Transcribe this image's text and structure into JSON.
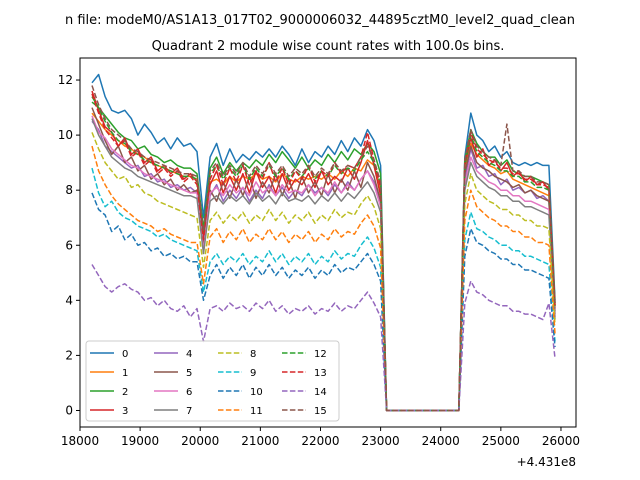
{
  "suptitle": "n file: modeM0/AS1A13_017T02_9000006032_44895cztM0_level2_quad_clean",
  "chart_data": {
    "type": "line",
    "title": "Quadrant 2 module wise count rates with 100.0s bins.",
    "xlabel": "",
    "ylabel": "",
    "x_offset_label": "+4.431e8",
    "xlim": [
      18000,
      26250
    ],
    "ylim": [
      -0.6,
      12.8
    ],
    "x_ticks": [
      18000,
      19000,
      20000,
      21000,
      22000,
      23000,
      24000,
      25000,
      26000
    ],
    "x_tick_labels": [
      "18000",
      "19000",
      "20000",
      "21000",
      "22000",
      "23000",
      "24000",
      "25000",
      "26000"
    ],
    "y_ticks": [
      0,
      2,
      4,
      6,
      8,
      10,
      12
    ],
    "y_tick_labels": [
      "0",
      "2",
      "4",
      "6",
      "8",
      "10",
      "12"
    ],
    "grid": false,
    "legend": {
      "placement": "lower-left",
      "columns": 4
    },
    "segments": [
      {
        "x_start": 18200,
        "x_end": 23000
      },
      {
        "x_start": 24400,
        "x_end": 25900
      }
    ],
    "gap": {
      "x": [
        23100,
        23200,
        23300,
        23400,
        23500,
        23600,
        23700,
        23800,
        23900,
        24000,
        24100,
        24200,
        24300
      ],
      "value": 0
    },
    "series": [
      {
        "name": "0",
        "color": "#1f77b4",
        "dash": "solid",
        "seg1": [
          11.9,
          12.2,
          11.4,
          10.9,
          10.8,
          10.9,
          10.6,
          10.0,
          10.4,
          10.1,
          9.7,
          9.9,
          9.5,
          9.9,
          9.6,
          9.7,
          9.4,
          7.0,
          9.2,
          9.7,
          8.9,
          9.5,
          9.0,
          9.3,
          9.1,
          9.4,
          9.2,
          9.5,
          9.2,
          9.6,
          9.3,
          8.9,
          9.5,
          9.0,
          9.4,
          9.2,
          9.6,
          9.3,
          9.8,
          9.4,
          9.9,
          9.6,
          10.2,
          9.8,
          8.9
        ],
        "seg2": [
          9.2,
          10.8,
          10.0,
          9.8,
          9.4,
          9.6,
          9.2,
          9.4,
          9.0,
          8.9,
          9.0,
          8.9,
          9.0,
          8.9,
          8.9,
          4.0
        ]
      },
      {
        "name": "1",
        "color": "#ff7f0e",
        "dash": "solid",
        "seg1": [
          10.8,
          10.5,
          10.2,
          10.0,
          9.8,
          9.6,
          9.5,
          9.3,
          9.2,
          9.0,
          8.9,
          8.8,
          8.7,
          8.6,
          8.5,
          8.5,
          8.4,
          6.4,
          8.3,
          8.4,
          8.2,
          8.5,
          8.3,
          8.5,
          8.4,
          8.6,
          8.4,
          8.5,
          8.3,
          8.6,
          8.4,
          8.3,
          8.5,
          8.4,
          8.5,
          8.4,
          8.6,
          8.4,
          8.7,
          8.5,
          8.8,
          8.7,
          9.1,
          8.9,
          8.0
        ],
        "seg2": [
          8.8,
          9.7,
          9.3,
          9.1,
          8.9,
          8.8,
          8.6,
          8.7,
          8.4,
          8.3,
          8.2,
          8.1,
          8.0,
          7.9,
          7.8,
          3.8
        ]
      },
      {
        "name": "2",
        "color": "#2ca02c",
        "dash": "solid",
        "seg1": [
          11.2,
          11.0,
          10.7,
          10.4,
          10.1,
          9.9,
          9.8,
          9.5,
          9.6,
          9.3,
          9.2,
          9.0,
          9.1,
          8.9,
          8.8,
          8.8,
          8.6,
          6.6,
          8.8,
          9.2,
          8.6,
          9.0,
          8.7,
          9.0,
          8.8,
          9.1,
          8.9,
          9.3,
          9.0,
          9.4,
          9.1,
          8.8,
          9.2,
          8.8,
          9.1,
          8.9,
          9.3,
          9.0,
          9.4,
          9.1,
          9.5,
          9.3,
          9.7,
          9.4,
          8.6
        ],
        "seg2": [
          9.1,
          10.2,
          9.7,
          9.4,
          9.2,
          9.2,
          8.9,
          9.1,
          8.7,
          8.6,
          8.5,
          8.5,
          8.4,
          8.3,
          8.2,
          3.9
        ]
      },
      {
        "name": "3",
        "color": "#d62728",
        "dash": "solid",
        "seg1": [
          11.6,
          10.9,
          10.3,
          10.1,
          9.6,
          9.9,
          9.3,
          9.5,
          9.0,
          9.2,
          8.7,
          8.9,
          8.6,
          8.8,
          8.4,
          8.6,
          8.3,
          6.3,
          8.2,
          8.7,
          7.9,
          8.5,
          8.0,
          8.6,
          7.9,
          8.7,
          8.1,
          8.5,
          7.9,
          8.6,
          8.0,
          8.4,
          8.2,
          8.6,
          8.1,
          8.7,
          8.2,
          8.5,
          8.3,
          8.8,
          8.4,
          9.0,
          9.8,
          8.9,
          7.8
        ],
        "seg2": [
          8.9,
          9.9,
          9.2,
          9.5,
          8.9,
          9.1,
          8.7,
          9.0,
          8.5,
          8.7,
          8.3,
          8.5,
          8.2,
          8.3,
          8.0,
          3.7
        ]
      },
      {
        "name": "4",
        "color": "#9467bd",
        "dash": "solid",
        "seg1": [
          10.5,
          10.2,
          9.6,
          9.4,
          9.2,
          9.0,
          8.8,
          8.9,
          8.5,
          8.6,
          8.3,
          8.4,
          8.1,
          8.2,
          8.0,
          8.1,
          7.9,
          6.0,
          7.8,
          8.2,
          7.6,
          8.0,
          7.7,
          8.1,
          7.6,
          8.0,
          7.7,
          8.2,
          7.8,
          8.1,
          7.7,
          8.0,
          7.8,
          8.2,
          7.9,
          8.1,
          7.8,
          8.2,
          7.9,
          8.3,
          8.0,
          8.4,
          8.7,
          8.3,
          7.5
        ],
        "seg2": [
          8.4,
          9.5,
          8.8,
          8.9,
          8.5,
          8.6,
          8.2,
          8.4,
          8.0,
          8.1,
          7.9,
          8.0,
          7.7,
          7.8,
          7.6,
          3.5
        ]
      },
      {
        "name": "5",
        "color": "#8c564b",
        "dash": "solid",
        "seg1": [
          11.0,
          10.4,
          9.8,
          9.3,
          9.6,
          9.0,
          9.2,
          8.7,
          8.9,
          8.4,
          8.6,
          8.2,
          8.4,
          8.0,
          8.2,
          7.9,
          8.0,
          5.9,
          8.0,
          7.6,
          8.3,
          7.7,
          8.4,
          7.8,
          8.5,
          7.7,
          8.3,
          7.9,
          8.6,
          7.8,
          8.4,
          7.7,
          8.5,
          7.9,
          8.3,
          7.8,
          8.6,
          7.9,
          8.4,
          8.0,
          8.7,
          8.1,
          9.0,
          8.5,
          7.6
        ],
        "seg2": [
          8.6,
          9.6,
          9.0,
          8.8,
          8.7,
          8.5,
          8.4,
          8.3,
          8.1,
          8.2,
          7.9,
          8.0,
          7.8,
          7.7,
          7.6,
          3.6
        ]
      },
      {
        "name": "6",
        "color": "#e377c2",
        "dash": "solid",
        "seg1": [
          10.7,
          10.1,
          9.9,
          9.5,
          9.3,
          9.1,
          8.9,
          8.8,
          8.6,
          8.5,
          8.4,
          8.3,
          8.2,
          8.1,
          8.0,
          7.9,
          7.9,
          5.8,
          7.9,
          8.1,
          7.8,
          8.2,
          7.9,
          8.1,
          7.8,
          8.3,
          7.9,
          8.1,
          7.8,
          8.2,
          7.9,
          8.0,
          7.9,
          8.2,
          7.8,
          8.1,
          7.9,
          8.3,
          7.9,
          8.2,
          8.0,
          8.4,
          8.7,
          8.2,
          7.4
        ],
        "seg2": [
          8.2,
          9.2,
          8.7,
          8.5,
          8.3,
          8.2,
          8.0,
          8.0,
          7.8,
          7.8,
          7.6,
          7.6,
          7.5,
          7.4,
          7.3,
          3.4
        ]
      },
      {
        "name": "7",
        "color": "#7f7f7f",
        "dash": "solid",
        "seg1": [
          10.6,
          10.0,
          9.6,
          9.2,
          9.0,
          8.8,
          8.7,
          8.5,
          8.4,
          8.3,
          8.2,
          8.1,
          8.0,
          7.9,
          7.8,
          7.8,
          7.7,
          5.7,
          7.6,
          7.8,
          7.5,
          7.8,
          7.6,
          7.8,
          7.5,
          7.9,
          7.6,
          7.8,
          7.5,
          7.9,
          7.6,
          7.7,
          7.6,
          7.8,
          7.5,
          7.8,
          7.6,
          7.9,
          7.6,
          7.9,
          7.7,
          8.0,
          8.3,
          7.9,
          7.2
        ],
        "seg2": [
          8.0,
          9.0,
          8.5,
          8.3,
          8.1,
          8.0,
          7.8,
          7.8,
          7.6,
          7.6,
          7.4,
          7.4,
          7.3,
          7.2,
          7.1,
          3.3
        ]
      },
      {
        "name": "8",
        "color": "#bcbd22",
        "dash": "dashed",
        "seg1": [
          10.1,
          9.5,
          9.0,
          8.7,
          8.4,
          8.5,
          8.1,
          8.2,
          7.9,
          7.8,
          7.6,
          7.5,
          7.4,
          7.3,
          7.2,
          7.1,
          7.0,
          5.2,
          6.9,
          7.2,
          6.8,
          7.1,
          6.9,
          7.2,
          6.8,
          7.1,
          6.9,
          7.3,
          6.9,
          7.2,
          6.8,
          7.1,
          6.9,
          7.2,
          6.8,
          7.1,
          6.9,
          7.3,
          7.0,
          7.2,
          7.1,
          7.5,
          7.8,
          7.4,
          6.6
        ],
        "seg2": [
          7.5,
          8.6,
          8.0,
          7.8,
          7.6,
          7.5,
          7.3,
          7.3,
          7.1,
          7.1,
          6.9,
          6.9,
          6.7,
          6.7,
          6.6,
          3.1
        ]
      },
      {
        "name": "9",
        "color": "#17becf",
        "dash": "dashed",
        "seg1": [
          8.8,
          7.9,
          7.4,
          7.6,
          7.2,
          7.0,
          6.9,
          6.7,
          6.6,
          6.5,
          6.3,
          6.4,
          6.2,
          6.1,
          6.0,
          5.9,
          5.8,
          4.3,
          5.4,
          5.7,
          5.3,
          5.6,
          5.4,
          5.7,
          5.3,
          5.6,
          5.4,
          5.8,
          5.4,
          5.7,
          5.3,
          5.6,
          5.4,
          5.7,
          5.3,
          5.6,
          5.4,
          5.8,
          5.5,
          5.7,
          5.6,
          6.0,
          6.3,
          5.9,
          5.2
        ],
        "seg2": [
          6.2,
          7.2,
          6.6,
          6.5,
          6.3,
          6.2,
          6.0,
          6.0,
          5.8,
          5.8,
          5.6,
          5.6,
          5.5,
          5.4,
          5.3,
          2.5
        ]
      },
      {
        "name": "10",
        "color": "#1f77b4",
        "dash": "dashed",
        "seg1": [
          7.9,
          7.3,
          7.1,
          6.5,
          6.7,
          6.2,
          6.4,
          6.0,
          6.1,
          5.8,
          5.9,
          5.6,
          5.7,
          5.5,
          5.6,
          5.4,
          5.4,
          4.0,
          4.9,
          5.3,
          4.8,
          5.2,
          4.9,
          5.3,
          4.8,
          5.2,
          4.9,
          5.3,
          4.9,
          5.2,
          4.8,
          5.1,
          4.9,
          5.2,
          4.8,
          5.1,
          4.9,
          5.3,
          5.0,
          5.2,
          5.1,
          5.4,
          5.7,
          5.3,
          4.7
        ],
        "seg2": [
          5.6,
          6.6,
          6.1,
          6.0,
          5.8,
          5.7,
          5.5,
          5.5,
          5.3,
          5.3,
          5.1,
          5.1,
          5.0,
          4.9,
          4.8,
          2.3
        ]
      },
      {
        "name": "11",
        "color": "#ff7f0e",
        "dash": "dashed",
        "seg1": [
          9.6,
          8.7,
          8.2,
          7.8,
          7.5,
          7.3,
          7.1,
          6.9,
          6.8,
          6.7,
          6.5,
          6.6,
          6.4,
          6.3,
          6.2,
          6.1,
          6.1,
          4.6,
          6.3,
          6.6,
          6.1,
          6.5,
          6.2,
          6.6,
          6.1,
          6.4,
          6.2,
          6.6,
          6.2,
          6.5,
          6.1,
          6.4,
          6.2,
          6.5,
          6.1,
          6.4,
          6.2,
          6.6,
          6.3,
          6.5,
          6.4,
          6.8,
          7.1,
          6.7,
          5.9
        ],
        "seg2": [
          6.9,
          8.0,
          7.4,
          7.2,
          7.0,
          6.9,
          6.7,
          6.7,
          6.5,
          6.5,
          6.3,
          6.3,
          6.1,
          6.1,
          6.0,
          2.8
        ]
      },
      {
        "name": "12",
        "color": "#2ca02c",
        "dash": "dashed",
        "seg1": [
          11.4,
          11.0,
          10.5,
          10.1,
          9.8,
          9.7,
          9.4,
          9.3,
          9.1,
          9.0,
          8.9,
          8.8,
          8.7,
          8.6,
          8.5,
          8.5,
          8.4,
          6.4,
          8.6,
          8.9,
          8.4,
          8.8,
          8.5,
          8.9,
          8.4,
          8.8,
          8.5,
          8.9,
          8.5,
          8.8,
          8.4,
          8.7,
          8.5,
          8.8,
          8.4,
          8.7,
          8.5,
          8.9,
          8.6,
          8.8,
          8.7,
          9.1,
          9.4,
          9.0,
          8.2
        ],
        "seg2": [
          8.9,
          10.0,
          9.4,
          9.2,
          9.0,
          8.9,
          8.7,
          8.7,
          8.5,
          8.5,
          8.3,
          8.3,
          8.1,
          8.1,
          8.0,
          3.8
        ]
      },
      {
        "name": "13",
        "color": "#d62728",
        "dash": "dashed",
        "seg1": [
          11.5,
          10.8,
          10.2,
          9.9,
          9.6,
          9.8,
          9.2,
          9.4,
          8.9,
          9.1,
          8.6,
          8.8,
          8.5,
          8.7,
          8.3,
          8.5,
          8.2,
          6.2,
          8.4,
          8.9,
          8.2,
          8.8,
          8.3,
          8.9,
          8.2,
          8.7,
          8.4,
          9.0,
          8.3,
          8.8,
          8.2,
          8.7,
          8.4,
          8.9,
          8.3,
          8.7,
          8.5,
          9.0,
          8.6,
          8.9,
          8.8,
          9.2,
          10.1,
          9.1,
          8.1
        ],
        "seg2": [
          9.0,
          10.1,
          9.5,
          9.3,
          9.1,
          9.0,
          8.8,
          8.8,
          8.6,
          8.6,
          8.4,
          8.4,
          8.2,
          8.2,
          8.1,
          3.8
        ]
      },
      {
        "name": "14",
        "color": "#9467bd",
        "dash": "dashed",
        "seg1": [
          5.3,
          4.9,
          4.5,
          4.3,
          4.5,
          4.6,
          4.4,
          4.3,
          4.0,
          4.1,
          3.8,
          4.0,
          3.7,
          3.6,
          3.8,
          3.4,
          3.7,
          2.5,
          3.7,
          3.8,
          3.6,
          3.9,
          3.7,
          3.8,
          3.6,
          3.9,
          3.7,
          4.0,
          3.6,
          3.8,
          3.5,
          3.7,
          3.6,
          3.8,
          3.5,
          3.7,
          3.6,
          3.9,
          3.6,
          3.8,
          3.7,
          4.0,
          4.3,
          3.9,
          3.4
        ],
        "seg2": [
          3.9,
          4.7,
          4.3,
          4.2,
          4.0,
          3.9,
          3.8,
          3.8,
          3.6,
          3.6,
          3.5,
          3.5,
          3.4,
          3.3,
          3.9,
          1.9
        ]
      },
      {
        "name": "15",
        "color": "#8c564b",
        "dash": "dashed",
        "seg1": [
          11.8,
          11.1,
          10.6,
          10.2,
          10.0,
          9.8,
          9.5,
          9.4,
          9.2,
          9.1,
          9.0,
          8.9,
          8.8,
          8.7,
          8.6,
          8.6,
          8.5,
          6.5,
          8.7,
          9.0,
          8.5,
          8.9,
          8.6,
          9.0,
          8.5,
          8.9,
          8.6,
          9.0,
          8.6,
          8.9,
          8.5,
          8.8,
          8.6,
          8.9,
          8.5,
          8.8,
          8.6,
          9.0,
          8.7,
          8.9,
          8.8,
          9.2,
          9.6,
          9.1,
          8.3
        ],
        "seg2": [
          9.1,
          10.2,
          9.6,
          9.4,
          9.2,
          9.1,
          8.9,
          10.4,
          8.7,
          8.7,
          8.5,
          8.5,
          8.3,
          8.3,
          8.2,
          3.9
        ]
      }
    ]
  }
}
